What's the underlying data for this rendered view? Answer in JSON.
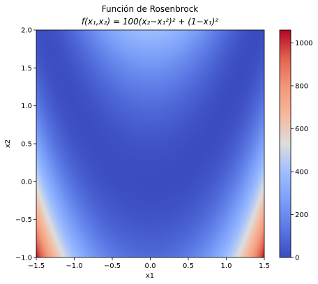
{
  "chart_data": {
    "type": "heatmap",
    "title": "Función de Rosenbrock",
    "subtitle": "f(x₁,x₂) = 100(x₂−x₁²)² + (1−x₁)²",
    "xlabel": "x1",
    "ylabel": "x2",
    "xlim": [
      -1.5,
      1.5
    ],
    "ylim": [
      -1.0,
      2.0
    ],
    "x_ticks": [
      "−1.5",
      "−1.0",
      "−0.5",
      "0.0",
      "0.5",
      "1.0",
      "1.5"
    ],
    "y_ticks": [
      "−1.0",
      "−0.5",
      "0.0",
      "0.5",
      "1.0",
      "1.5",
      "2.0"
    ],
    "function": "100*(x2 - x1^2)^2 + (1 - x1)^2",
    "colormap": "coolwarm",
    "colorbar": {
      "range": [
        0,
        1060
      ],
      "ticks": [
        "0",
        "200",
        "400",
        "600",
        "800",
        "1000"
      ]
    },
    "grid": false
  }
}
